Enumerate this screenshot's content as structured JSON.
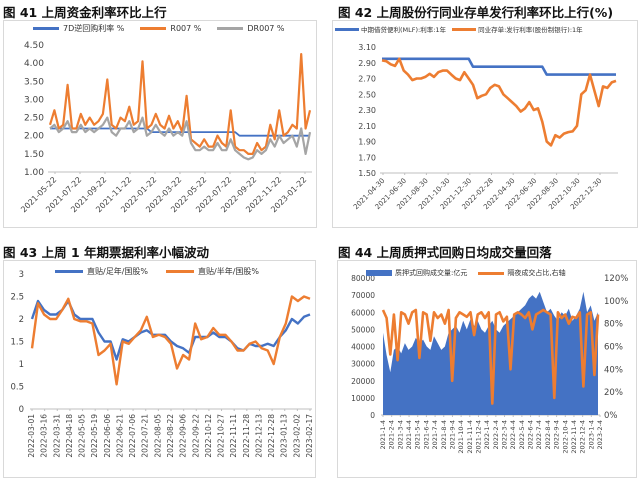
{
  "colors": {
    "blue": "#4472c4",
    "orange": "#ed7d31",
    "gray": "#a5a5a5"
  },
  "chart_data": [
    {
      "type": "line",
      "title": "图 41 上周资金利率环比上行",
      "ylim": [
        1.0,
        4.5
      ],
      "yticks": [
        "1.00",
        "1.50",
        "2.00",
        "2.50",
        "3.00",
        "3.50",
        "4.00",
        "4.50"
      ],
      "xticks": [
        "2021-05-22",
        "2021-07-22",
        "2021-09-22",
        "2021-11-22",
        "2022-01-22",
        "2022-03-22",
        "2022-05-22",
        "2022-07-22",
        "2022-09-22",
        "2022-11-22",
        "2023-01-22"
      ],
      "legend": "top",
      "series": [
        {
          "name": "7D逆回购利率 %",
          "color": "#4472c4",
          "values": [
            2.2,
            2.2,
            2.2,
            2.2,
            2.2,
            2.2,
            2.2,
            2.2,
            2.2,
            2.2,
            2.2,
            2.2,
            2.2,
            2.2,
            2.2,
            2.2,
            2.2,
            2.2,
            2.2,
            2.2,
            2.2,
            2.2,
            2.2,
            2.1,
            2.1,
            2.1,
            2.1,
            2.1,
            2.1,
            2.1,
            2.1,
            2.1,
            2.1,
            2.1,
            2.1,
            2.1,
            2.1,
            2.1,
            2.1,
            2.1,
            2.1,
            2.1,
            2.1,
            2.0,
            2.0,
            2.0,
            2.0,
            2.0,
            2.0,
            2.0,
            2.0,
            2.0,
            2.0,
            2.0,
            2.0,
            2.0,
            2.0,
            2.0,
            2.0,
            2.0
          ]
        },
        {
          "name": "R007 %",
          "color": "#ed7d31",
          "values": [
            2.3,
            2.7,
            2.2,
            2.3,
            3.4,
            2.2,
            2.2,
            2.6,
            2.3,
            2.5,
            2.3,
            2.4,
            2.6,
            3.55,
            2.3,
            2.2,
            2.5,
            2.4,
            2.8,
            2.3,
            2.4,
            4.05,
            2.2,
            2.3,
            2.6,
            2.3,
            2.2,
            2.55,
            2.2,
            2.4,
            2.1,
            3.1,
            1.9,
            1.8,
            1.7,
            1.9,
            1.7,
            1.7,
            2.0,
            1.8,
            1.7,
            2.7,
            1.7,
            1.6,
            1.6,
            1.5,
            1.5,
            1.8,
            1.6,
            1.7,
            2.3,
            1.9,
            2.7,
            2.0,
            2.1,
            2.3,
            2.2,
            4.25,
            2.2,
            2.7
          ]
        },
        {
          "name": "DR007 %",
          "color": "#a5a5a5",
          "values": [
            2.2,
            2.3,
            2.1,
            2.2,
            2.4,
            2.1,
            2.1,
            2.3,
            2.1,
            2.2,
            2.1,
            2.2,
            2.3,
            2.5,
            2.1,
            2.0,
            2.2,
            2.2,
            2.4,
            2.1,
            2.2,
            2.5,
            2.0,
            2.1,
            2.3,
            2.1,
            2.0,
            2.2,
            2.0,
            2.1,
            2.0,
            2.4,
            1.8,
            1.6,
            1.6,
            1.7,
            1.6,
            1.6,
            1.8,
            1.6,
            1.6,
            1.9,
            1.6,
            1.5,
            1.4,
            1.35,
            1.4,
            1.6,
            1.5,
            1.6,
            1.9,
            1.7,
            2.0,
            1.8,
            1.9,
            2.0,
            1.7,
            2.2,
            1.5,
            2.1
          ]
        }
      ]
    },
    {
      "type": "line",
      "title": "图 42  上周股份行同业存单发行利率环比上行(%)",
      "ylim": [
        1.5,
        3.1
      ],
      "yticks": [
        "1.50",
        "1.70",
        "1.90",
        "2.10",
        "2.30",
        "2.50",
        "2.70",
        "2.90",
        "3.10"
      ],
      "xticks": [
        "2021-04-30",
        "2021-06-30",
        "2021-08-30",
        "2021-10-30",
        "2021-12-30",
        "2022-02-28",
        "2022-04-30",
        "2022-06-30",
        "2022-08-30",
        "2022-10-30",
        "2022-12-30"
      ],
      "legend": "top",
      "series": [
        {
          "name": "中期借贷便利(MLF):利率:1年",
          "color": "#4472c4",
          "values": [
            2.95,
            2.95,
            2.95,
            2.95,
            2.95,
            2.95,
            2.95,
            2.95,
            2.95,
            2.95,
            2.95,
            2.95,
            2.95,
            2.95,
            2.95,
            2.95,
            2.95,
            2.95,
            2.95,
            2.95,
            2.95,
            2.85,
            2.85,
            2.85,
            2.85,
            2.85,
            2.85,
            2.85,
            2.85,
            2.85,
            2.85,
            2.85,
            2.85,
            2.85,
            2.85,
            2.85,
            2.85,
            2.85,
            2.75,
            2.75,
            2.75,
            2.75,
            2.75,
            2.75,
            2.75,
            2.75,
            2.75,
            2.75,
            2.75,
            2.75,
            2.75,
            2.75,
            2.75,
            2.75,
            2.75
          ]
        },
        {
          "name": "同业存单:发行利率(股份制银行):1年",
          "color": "#ed7d31",
          "values": [
            2.93,
            2.92,
            2.88,
            2.86,
            2.95,
            2.8,
            2.75,
            2.68,
            2.7,
            2.7,
            2.72,
            2.76,
            2.72,
            2.78,
            2.8,
            2.8,
            2.75,
            2.7,
            2.68,
            2.78,
            2.7,
            2.62,
            2.45,
            2.48,
            2.5,
            2.58,
            2.62,
            2.6,
            2.5,
            2.45,
            2.4,
            2.35,
            2.28,
            2.32,
            2.4,
            2.3,
            2.32,
            2.15,
            1.9,
            1.85,
            1.98,
            1.95,
            2.0,
            2.02,
            2.03,
            2.1,
            2.5,
            2.55,
            2.75,
            2.55,
            2.35,
            2.6,
            2.58,
            2.65,
            2.67
          ]
        }
      ]
    },
    {
      "type": "line",
      "title": "图 43 上周 1 年期票据利率小幅波动",
      "ylim": [
        0,
        3
      ],
      "yticks": [
        "0",
        "0.5",
        "1",
        "1.5",
        "2",
        "2.5",
        "3"
      ],
      "xticks": [
        "2022-03-01",
        "2022-03-16",
        "2022-03-31",
        "2022-04-18",
        "2022-05-05",
        "2022-05-19",
        "2022-06-06",
        "2022-06-21",
        "2022-07-06",
        "2022-07-21",
        "2022-08-05",
        "2022-08-22",
        "2022-09-06",
        "2022-09-22",
        "2022-10-12",
        "2022-10-27",
        "2022-11-11",
        "2022-11-28",
        "2022-12-13",
        "2022-12-28",
        "2023-01-13",
        "2023-02-02",
        "2023-02-17"
      ],
      "legend": "top",
      "series": [
        {
          "name": "直贴/足年/国股%",
          "color": "#4472c4",
          "values": [
            2.0,
            2.4,
            2.2,
            2.1,
            2.1,
            2.2,
            2.4,
            2.1,
            2.0,
            2.0,
            2.0,
            1.7,
            1.5,
            1.5,
            1.1,
            1.55,
            1.5,
            1.6,
            1.7,
            1.75,
            1.65,
            1.65,
            1.65,
            1.5,
            1.4,
            1.35,
            1.25,
            1.6,
            1.6,
            1.6,
            1.7,
            1.6,
            1.6,
            1.5,
            1.35,
            1.3,
            1.45,
            1.4,
            1.4,
            1.45,
            1.4,
            1.6,
            1.75,
            2.0,
            1.9,
            2.05,
            2.1
          ]
        },
        {
          "name": "直贴/半年/国股%",
          "color": "#ed7d31",
          "values": [
            1.35,
            2.35,
            2.1,
            2.0,
            2.0,
            2.2,
            2.45,
            2.0,
            1.95,
            1.95,
            1.9,
            1.2,
            1.3,
            1.45,
            0.55,
            1.5,
            1.45,
            1.6,
            1.75,
            2.05,
            1.6,
            1.65,
            1.6,
            1.45,
            0.9,
            1.2,
            1.1,
            1.9,
            1.55,
            1.6,
            1.8,
            1.65,
            1.65,
            1.5,
            1.3,
            1.3,
            1.45,
            1.5,
            1.35,
            1.3,
            1.0,
            1.6,
            1.9,
            2.5,
            2.4,
            2.5,
            2.45
          ]
        }
      ]
    },
    {
      "type": "area",
      "title": "图 44 上周质押式回购日均成交量回落",
      "ylim": [
        0,
        80000
      ],
      "y2lim": [
        0,
        120
      ],
      "yticks": [
        "0",
        "10000",
        "20000",
        "30000",
        "40000",
        "50000",
        "60000",
        "70000",
        "80000"
      ],
      "y2ticks": [
        "0%",
        "20%",
        "40%",
        "60%",
        "80%",
        "100%",
        "120%"
      ],
      "xticks": [
        "2021-1-4",
        "2021-2-4",
        "2021-3-4",
        "2021-4-4",
        "2021-5-4",
        "2021-6-4",
        "2021-7-4",
        "2021-8-4",
        "2021-9-4",
        "2021-10-4",
        "2021-11-4",
        "2021-12-4",
        "2022-1-4",
        "2022-2-4",
        "2022-3-4",
        "2022-4-4",
        "2022-5-4",
        "2022-6-4",
        "2022-7-4",
        "2022-8-4",
        "2022-9-4",
        "2022-10-4",
        "2022-11-4",
        "2022-12-4",
        "2023-1-4",
        "2023-2-4"
      ],
      "legend": "top",
      "series": [
        {
          "name": "质押式回购成交量:亿元",
          "color": "#4472c4",
          "axis": "left",
          "values": [
            48000,
            35000,
            25000,
            38000,
            40000,
            36000,
            42000,
            38000,
            40000,
            45000,
            42000,
            44000,
            40000,
            38000,
            46000,
            42000,
            38000,
            40000,
            48000,
            50000,
            52000,
            48000,
            55000,
            50000,
            56000,
            52000,
            55000,
            50000,
            48000,
            52000,
            55000,
            50000,
            48000,
            52000,
            54000,
            56000,
            58000,
            60000,
            62000,
            64000,
            68000,
            70000,
            68000,
            72000,
            66000,
            60000,
            62000,
            58000,
            55000,
            60000,
            58000,
            62000,
            55000,
            58000,
            62000,
            72000,
            60000,
            64000,
            55000,
            60000
          ]
        },
        {
          "name": "隔夜成交占比,右轴",
          "color": "#ed7d31",
          "axis": "right",
          "values": [
            92,
            85,
            53,
            88,
            48,
            90,
            88,
            80,
            90,
            92,
            50,
            90,
            88,
            65,
            90,
            85,
            88,
            80,
            92,
            30,
            85,
            90,
            88,
            86,
            90,
            70,
            88,
            90,
            85,
            90,
            10,
            88,
            90,
            82,
            86,
            40,
            88,
            90,
            88,
            85,
            90,
            75,
            88,
            90,
            92,
            90,
            88,
            15,
            90,
            85,
            88,
            80,
            86,
            85,
            90,
            25,
            88,
            90,
            35,
            88
          ]
        }
      ]
    }
  ]
}
